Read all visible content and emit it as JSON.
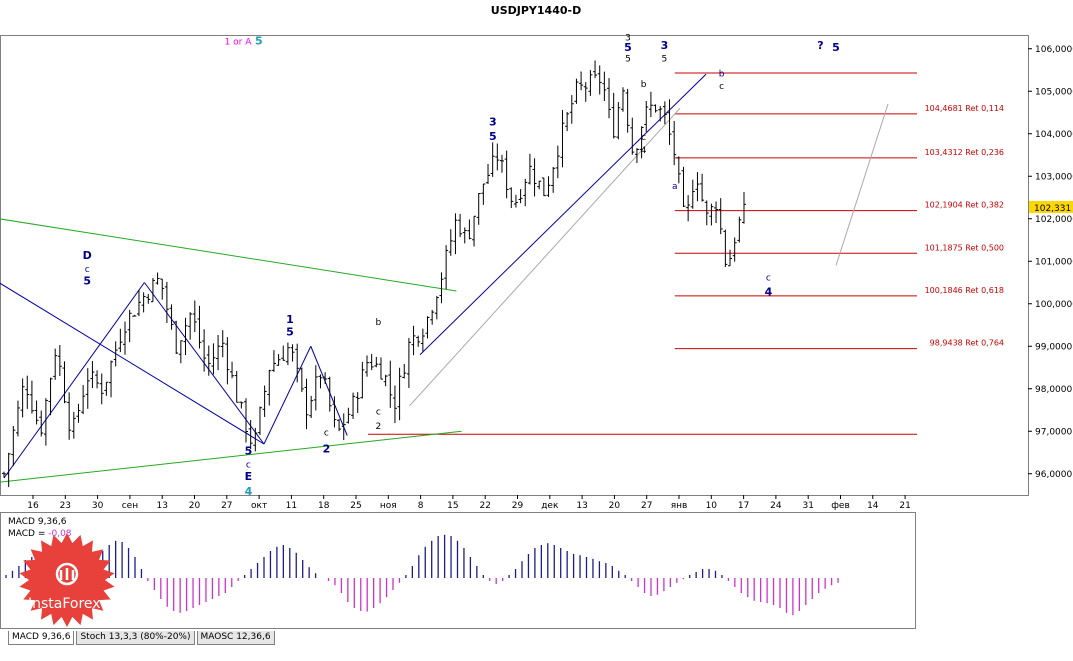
{
  "title": "USDJPY1440-D",
  "current_price": "102,331",
  "macd_header": {
    "line1": "MACD 9,36,6",
    "line2_prefix": "MACD = ",
    "line2_value": "-0,08"
  },
  "tabs": [
    {
      "label": "MACD 9,36,6",
      "active": true
    },
    {
      "label": "Stoch 13,3,3 (80%-20%)",
      "active": false
    },
    {
      "label": "MAOSC 12,36,6",
      "active": false
    }
  ],
  "logo": {
    "text": "InstaForex",
    "color": "#e8413b"
  },
  "colors": {
    "candles": "#000000",
    "retracement_lines": "#cc0000",
    "retracement_labels": "#cc0000",
    "trend_blue": "#0000aa",
    "trend_green": "#22aa22",
    "trend_gray": "#aaaaaa",
    "wave_blue": "#00008b",
    "wave_black": "#000000",
    "wave_magenta": "#ff00ff",
    "wave_cyan": "#1fa0b0",
    "macd_positive": "#1c1c8c",
    "macd_negative": "#cc33cc",
    "price_box": "#ffd700"
  },
  "chart_data": {
    "type": "candlestick",
    "symbol": "USDJPY",
    "timeframe": "D1",
    "ylim": [
      95.5,
      106.3
    ],
    "y_ticks": [
      "106,0000",
      "105,0000",
      "104,0000",
      "103,0000",
      "102,0000",
      "101,0000",
      "100,0000",
      "99,0000",
      "98,0000",
      "97,0000",
      "96,0000"
    ],
    "y_tick_values": [
      106,
      105,
      104,
      103,
      102,
      101,
      100,
      99,
      98,
      97,
      96
    ],
    "x_ticks": [
      "16",
      "23",
      "30",
      "сен",
      "13",
      "20",
      "27",
      "окт",
      "11",
      "18",
      "25",
      "ноя",
      "8",
      "15",
      "22",
      "29",
      "дек",
      "13",
      "20",
      "27",
      "янв",
      "10",
      "17",
      "24",
      "31",
      "фев",
      "14",
      "21"
    ],
    "n_bars": 132,
    "price_path": [
      [
        0,
        96.0
      ],
      [
        4,
        98.2
      ],
      [
        7,
        97.0
      ],
      [
        10,
        99.0
      ],
      [
        13,
        96.9
      ],
      [
        16,
        98.3
      ],
      [
        19,
        98.0
      ],
      [
        23,
        99.5
      ],
      [
        27,
        100.2
      ],
      [
        30,
        100.6
      ],
      [
        33,
        99.0
      ],
      [
        36,
        99.8
      ],
      [
        39,
        98.5
      ],
      [
        42,
        99.1
      ],
      [
        45,
        97.7
      ],
      [
        48,
        96.6
      ],
      [
        51,
        98.5
      ],
      [
        55,
        99.0
      ],
      [
        58,
        97.5
      ],
      [
        61,
        98.4
      ],
      [
        64,
        96.9
      ],
      [
        67,
        97.6
      ],
      [
        70,
        98.7
      ],
      [
        73,
        98.4
      ],
      [
        75,
        97.6
      ],
      [
        78,
        99.1
      ],
      [
        81,
        99.5
      ],
      [
        84,
        100.6
      ],
      [
        87,
        102.0
      ],
      [
        89,
        101.5
      ],
      [
        92,
        102.8
      ],
      [
        95,
        103.5
      ],
      [
        98,
        102.3
      ],
      [
        101,
        103.2
      ],
      [
        104,
        102.6
      ],
      [
        107,
        103.9
      ],
      [
        110,
        105.0
      ],
      [
        113,
        105.2
      ],
      [
        115,
        105.3
      ],
      [
        117,
        104.0
      ],
      [
        119,
        105.1
      ],
      [
        121,
        103.5
      ],
      [
        123,
        104.4
      ],
      [
        125,
        104.7
      ],
      [
        127,
        104.4
      ],
      [
        129,
        103.5
      ],
      [
        131,
        101.8
      ],
      [
        133,
        103.2
      ],
      [
        135,
        102.0
      ],
      [
        137,
        102.4
      ],
      [
        139,
        100.8
      ],
      [
        141,
        101.8
      ],
      [
        143,
        102.3
      ]
    ],
    "fibonacci_levels": [
      {
        "price": 104.4681,
        "label": "104,4681 Ret 0,114"
      },
      {
        "price": 103.4312,
        "label": "103,4312 Ret 0,236"
      },
      {
        "price": 102.1904,
        "label": "102,1904 Ret 0,382"
      },
      {
        "price": 101.1875,
        "label": "101,1875 Ret 0,500"
      },
      {
        "price": 100.1846,
        "label": "100,1846 Ret 0,618"
      },
      {
        "price": 98.9438,
        "label": "98,9438 Ret 0,764"
      }
    ],
    "high_line": 105.43,
    "low_line": 96.93,
    "wave_labels": [
      {
        "t": "1 or A",
        "c": "magenta",
        "bar": 45,
        "p": 106.1
      },
      {
        "t": "5",
        "c": "cyan",
        "bar": 49,
        "p": 106.1
      },
      {
        "t": "D",
        "c": "blue",
        "bar": 16,
        "p": 101.05
      },
      {
        "t": "c",
        "c": "blue",
        "bar": 16,
        "p": 100.75
      },
      {
        "t": "5",
        "c": "blue",
        "bar": 16,
        "p": 100.45
      },
      {
        "t": "5",
        "c": "blue",
        "bar": 47,
        "p": 96.45
      },
      {
        "t": "c",
        "c": "blue",
        "bar": 47,
        "p": 96.15
      },
      {
        "t": "E",
        "c": "blue",
        "bar": 47,
        "p": 95.85
      },
      {
        "t": "4",
        "c": "cyan",
        "bar": 47,
        "p": 95.5
      },
      {
        "t": "1",
        "c": "blue",
        "bar": 55,
        "p": 99.55
      },
      {
        "t": "5",
        "c": "blue",
        "bar": 55,
        "p": 99.25
      },
      {
        "t": "2",
        "c": "blue",
        "bar": 62,
        "p": 96.5
      },
      {
        "t": "c",
        "c": "black",
        "bar": 62,
        "p": 96.9
      },
      {
        "t": "b",
        "c": "black",
        "bar": 72,
        "p": 99.5
      },
      {
        "t": "c",
        "c": "black",
        "bar": 72,
        "p": 97.4
      },
      {
        "t": "2",
        "c": "black",
        "bar": 72,
        "p": 97.05
      },
      {
        "t": "3",
        "c": "blue",
        "bar": 94,
        "p": 104.2
      },
      {
        "t": "5",
        "c": "blue",
        "bar": 94,
        "p": 103.85
      },
      {
        "t": "3",
        "c": "black",
        "bar": 120,
        "p": 106.2
      },
      {
        "t": "5",
        "c": "blue",
        "bar": 120,
        "p": 105.95
      },
      {
        "t": "5",
        "c": "black",
        "bar": 120,
        "p": 105.7
      },
      {
        "t": "3",
        "c": "blue",
        "bar": 127,
        "p": 106.0
      },
      {
        "t": "5",
        "c": "black",
        "bar": 127,
        "p": 105.7
      },
      {
        "t": "b",
        "c": "black",
        "bar": 123,
        "p": 105.1
      },
      {
        "t": "c",
        "c": "black",
        "bar": 123,
        "p": 103.85
      },
      {
        "t": "4",
        "c": "black",
        "bar": 123,
        "p": 103.55
      },
      {
        "t": "b",
        "c": "blue",
        "bar": 138,
        "p": 105.35
      },
      {
        "t": "c",
        "c": "black",
        "bar": 138,
        "p": 105.05
      },
      {
        "t": "a",
        "c": "blue",
        "bar": 129,
        "p": 102.7
      },
      {
        "t": "c",
        "c": "blue",
        "bar": 147,
        "p": 100.55
      },
      {
        "t": "4",
        "c": "blue",
        "bar": 147,
        "p": 100.2
      },
      {
        "t": "?",
        "c": "blue",
        "bar": 157,
        "p": 106.0
      },
      {
        "t": "5",
        "c": "blue",
        "bar": 160,
        "p": 105.95
      }
    ],
    "macd": [
      0.05,
      0.12,
      0.2,
      0.3,
      0.35,
      0.28,
      0.15,
      0.05,
      -0.05,
      -0.1,
      -0.08,
      0.0,
      0.1,
      0.22,
      0.35,
      0.45,
      0.55,
      0.62,
      0.6,
      0.5,
      0.35,
      0.15,
      -0.05,
      -0.2,
      -0.35,
      -0.48,
      -0.55,
      -0.58,
      -0.55,
      -0.5,
      -0.45,
      -0.4,
      -0.35,
      -0.3,
      -0.25,
      -0.15,
      -0.05,
      0.05,
      0.15,
      0.25,
      0.35,
      0.45,
      0.52,
      0.55,
      0.5,
      0.42,
      0.3,
      0.18,
      0.08,
      0.0,
      -0.05,
      -0.12,
      -0.25,
      -0.4,
      -0.5,
      -0.55,
      -0.56,
      -0.5,
      -0.42,
      -0.32,
      -0.2,
      -0.08,
      0.05,
      0.2,
      0.38,
      0.52,
      0.62,
      0.7,
      0.72,
      0.7,
      0.62,
      0.5,
      0.35,
      0.2,
      0.05,
      -0.05,
      -0.1,
      -0.05,
      0.05,
      0.15,
      0.28,
      0.4,
      0.5,
      0.55,
      0.58,
      0.55,
      0.5,
      0.45,
      0.4,
      0.38,
      0.35,
      0.32,
      0.28,
      0.25,
      0.2,
      0.12,
      0.05,
      -0.05,
      -0.15,
      -0.25,
      -0.3,
      -0.28,
      -0.22,
      -0.15,
      -0.08,
      -0.02,
      0.05,
      0.1,
      0.15,
      0.15,
      0.12,
      0.05,
      -0.05,
      -0.15,
      -0.25,
      -0.32,
      -0.38,
      -0.4,
      -0.42,
      -0.45,
      -0.5,
      -0.58,
      -0.62,
      -0.55,
      -0.45,
      -0.35,
      -0.25,
      -0.18,
      -0.12,
      -0.08
    ]
  }
}
